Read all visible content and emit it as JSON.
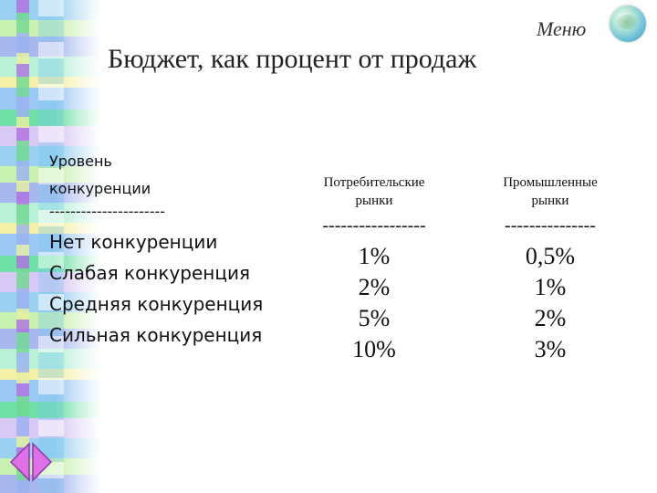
{
  "nav": {
    "menu_label": "Меню",
    "globe_icon": "globe-icon"
  },
  "title": "Бюджет, как процент от продаж",
  "table": {
    "row_header": [
      "Уровень",
      "конкуренции"
    ],
    "row_divider": "----------------------",
    "rows": [
      "Нет конкуренции",
      "Слабая конкуренция",
      "Средняя конкуренция",
      "Сильная конкуренция"
    ],
    "columns": [
      {
        "header": [
          "Потребительские",
          "рынки"
        ],
        "divider": "-----------------",
        "values": [
          "1%",
          "2%",
          "5%",
          "10%"
        ]
      },
      {
        "header": [
          "Промышленные",
          "рынки"
        ],
        "divider": "---------------",
        "values": [
          "0,5%",
          "1%",
          "2%",
          "3%"
        ]
      }
    ]
  },
  "colors": {
    "text": "#111111",
    "arrow_fill": "#e070e8",
    "arrow_stroke": "#8a3aa0"
  },
  "arrows": {
    "prev_icon": "arrow-left-icon",
    "next_icon": "arrow-right-icon"
  }
}
